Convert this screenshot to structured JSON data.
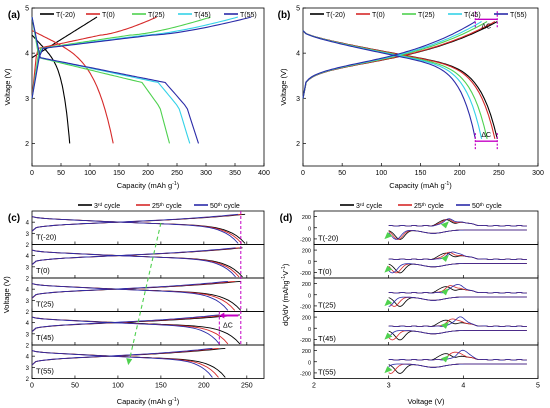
{
  "chart_data": [
    {
      "panel": "a",
      "type": "line",
      "xlabel": "Capacity (mAh g",
      "xlabel_sup": "-1",
      "xlabel_tail": ")",
      "ylabel": "Voltage (V)",
      "xlim": [
        0,
        400
      ],
      "ylim": [
        1.5,
        5.0
      ],
      "xticks": [
        0,
        50,
        100,
        150,
        200,
        250,
        300,
        350,
        400
      ],
      "yticks": [
        2,
        3,
        4,
        5
      ],
      "legend": [
        "T(-20)",
        "T(0)",
        "T(25)",
        "T(45)",
        "T(55)"
      ],
      "legend_position": "top",
      "series": [
        {
          "name": "T(-20)",
          "charge_end": 112,
          "discharge_end": 65
        },
        {
          "name": "T(0)",
          "charge_end": 215,
          "discharge_end": 140
        },
        {
          "name": "T(25)",
          "charge_end": 308,
          "discharge_end": 237
        },
        {
          "name": "T(45)",
          "charge_end": 355,
          "discharge_end": 272
        },
        {
          "name": "T(55)",
          "charge_end": 378,
          "discharge_end": 287
        }
      ]
    },
    {
      "panel": "b",
      "type": "line",
      "xlabel": "Capacity (mAh g",
      "xlabel_sup": "-1",
      "xlabel_tail": ")",
      "ylabel": "Voltage (V)",
      "xlim": [
        0,
        300
      ],
      "ylim": [
        1.5,
        5.0
      ],
      "xticks": [
        0,
        50,
        100,
        150,
        200,
        250,
        300
      ],
      "yticks": [
        2,
        3,
        4,
        5
      ],
      "legend": [
        "T(-20)",
        "T(0)",
        "T(25)",
        "T(45)",
        "T(55)"
      ],
      "legend_position": "top",
      "annotations": [
        "ΔC",
        "ΔC"
      ],
      "series": [
        {
          "name": "T(-20)",
          "capacity": 248
        },
        {
          "name": "T(0)",
          "capacity": 245
        },
        {
          "name": "T(25)",
          "capacity": 235
        },
        {
          "name": "T(45)",
          "capacity": 228
        },
        {
          "name": "T(55)",
          "capacity": 220
        }
      ]
    },
    {
      "panel": "c",
      "type": "line",
      "xlabel": "Capacity (mAh g",
      "xlabel_sup": "-1",
      "xlabel_tail": ")",
      "ylabel": "Voltage (V)",
      "xlim": [
        0,
        270
      ],
      "ylim": [
        2,
        5
      ],
      "xticks": [
        0,
        50,
        100,
        150,
        200,
        250
      ],
      "subpanel_yticks": [
        2,
        3,
        4
      ],
      "legend": [
        "3rd cycle",
        "25th cycle",
        "50th cycle"
      ],
      "legend_base": [
        "3",
        "25",
        "50"
      ],
      "legend_sup": [
        "rd",
        "th",
        "th"
      ],
      "legend_word": " cycle",
      "annotations": [
        "ΔC"
      ],
      "subpanels": [
        {
          "label": "T(-20)",
          "capacities": [
            248,
            244,
            240
          ]
        },
        {
          "label": "T(0)",
          "capacities": [
            245,
            241,
            237
          ]
        },
        {
          "label": "T(25)",
          "capacities": [
            243,
            236,
            228
          ]
        },
        {
          "label": "T(45)",
          "capacities": [
            242,
            228,
            218
          ]
        },
        {
          "label": "T(55)",
          "capacities": [
            225,
            217,
            210
          ]
        }
      ]
    },
    {
      "panel": "d",
      "type": "line",
      "xlabel": "Voltage (V)",
      "ylabel": "dQ/dV (mAhg",
      "ylabel_sup": "-1",
      "ylabel_mid": "V",
      "ylabel_tail": ")",
      "xlim": [
        2,
        5
      ],
      "xticks": [
        2,
        3,
        4,
        5
      ],
      "subpanel_yticks": [
        -200,
        0,
        200
      ],
      "legend": [
        "3rd cycle",
        "25th cycle",
        "50th cycle"
      ],
      "legend_base": [
        "3",
        "25",
        "50"
      ],
      "legend_sup": [
        "rd",
        "th",
        "th"
      ],
      "legend_word": " cycle",
      "subpanels": [
        {
          "label": "T(-20)"
        },
        {
          "label": "T(0)"
        },
        {
          "label": "T(25)"
        },
        {
          "label": "T(45)"
        },
        {
          "label": "T(55)"
        }
      ]
    }
  ],
  "panel_labels": [
    "(a)",
    "(b)",
    "(c)",
    "(d)"
  ],
  "colors": {
    "T(-20)": "#000000",
    "T(0)": "#d62a2a",
    "T(25)": "#4fd14f",
    "T(45)": "#35d2e8",
    "T(55)": "#2b2ba8",
    "cycle3": "#000000",
    "cycle25": "#d62a2a",
    "cycle50": "#2b2ba8",
    "annotation": "#c400c4",
    "trend": "#4fd14f"
  }
}
